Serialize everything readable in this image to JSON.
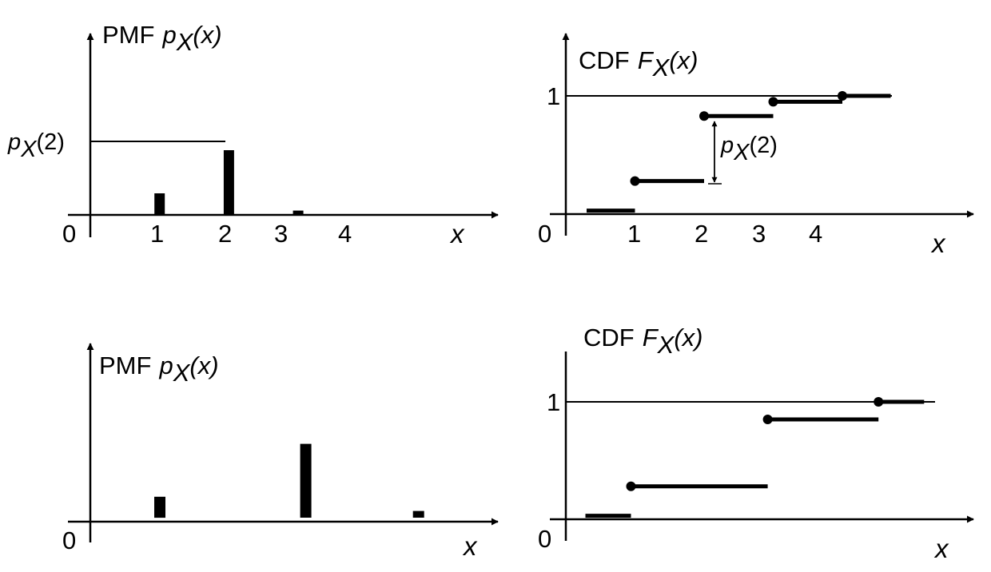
{
  "chart_data": [
    {
      "type": "bar",
      "panel": "top-left",
      "title_prefix": "PMF",
      "title_fn": "p",
      "title_sub": "X",
      "title_arg": "(x)",
      "origin_label": "0",
      "xlabel": "x",
      "x_ticks": [
        "1",
        "2",
        "3",
        "4"
      ],
      "ref_label_fn": "p",
      "ref_label_sub": "X",
      "ref_label_arg": "(2)",
      "x": [
        1,
        2,
        3
      ],
      "values": [
        0.25,
        0.75,
        0.05
      ],
      "ref_value": 0.85
    },
    {
      "type": "line",
      "subtype": "step-cdf",
      "panel": "top-right",
      "title_prefix": "CDF",
      "title_fn": "F",
      "title_sub": "X",
      "title_arg": "(x)",
      "origin_label": "0",
      "one_label": "1",
      "xlabel": "x",
      "x_ticks": [
        "1",
        "2",
        "3",
        "4"
      ],
      "jump_label_fn": "p",
      "jump_label_sub": "X",
      "jump_label_arg": "(2)",
      "steps": [
        {
          "x0": 0.3,
          "x1": 1,
          "y": 0.03,
          "dot": false
        },
        {
          "x0": 1,
          "x1": 2,
          "y": 0.28,
          "dot": true
        },
        {
          "x0": 2,
          "x1": 3,
          "y": 0.83,
          "dot": true
        },
        {
          "x0": 3,
          "x1": 4,
          "y": 0.95,
          "dot": true
        },
        {
          "x0": 4,
          "x1": 4.7,
          "y": 1.0,
          "dot": true
        }
      ],
      "ylim": [
        0,
        1
      ]
    },
    {
      "type": "bar",
      "panel": "bottom-left",
      "title_prefix": "PMF",
      "title_fn": "p",
      "title_sub": "X",
      "title_arg": "(x)",
      "origin_label": "0",
      "xlabel": "x",
      "x": [
        1,
        3.2,
        4.9
      ],
      "values": [
        0.25,
        0.88,
        0.08
      ]
    },
    {
      "type": "line",
      "subtype": "step-cdf",
      "panel": "bottom-right",
      "title_prefix": "CDF",
      "title_fn": "F",
      "title_sub": "X",
      "title_arg": "(x)",
      "origin_label": "0",
      "one_label": "1",
      "xlabel": "x",
      "steps": [
        {
          "x0": 0.3,
          "x1": 1,
          "y": 0.03,
          "dot": false
        },
        {
          "x0": 1,
          "x1": 3.1,
          "y": 0.28,
          "dot": true
        },
        {
          "x0": 3.1,
          "x1": 4.8,
          "y": 0.85,
          "dot": true
        },
        {
          "x0": 4.8,
          "x1": 5.5,
          "y": 1.0,
          "dot": true
        }
      ],
      "ylim": [
        0,
        1
      ]
    }
  ]
}
